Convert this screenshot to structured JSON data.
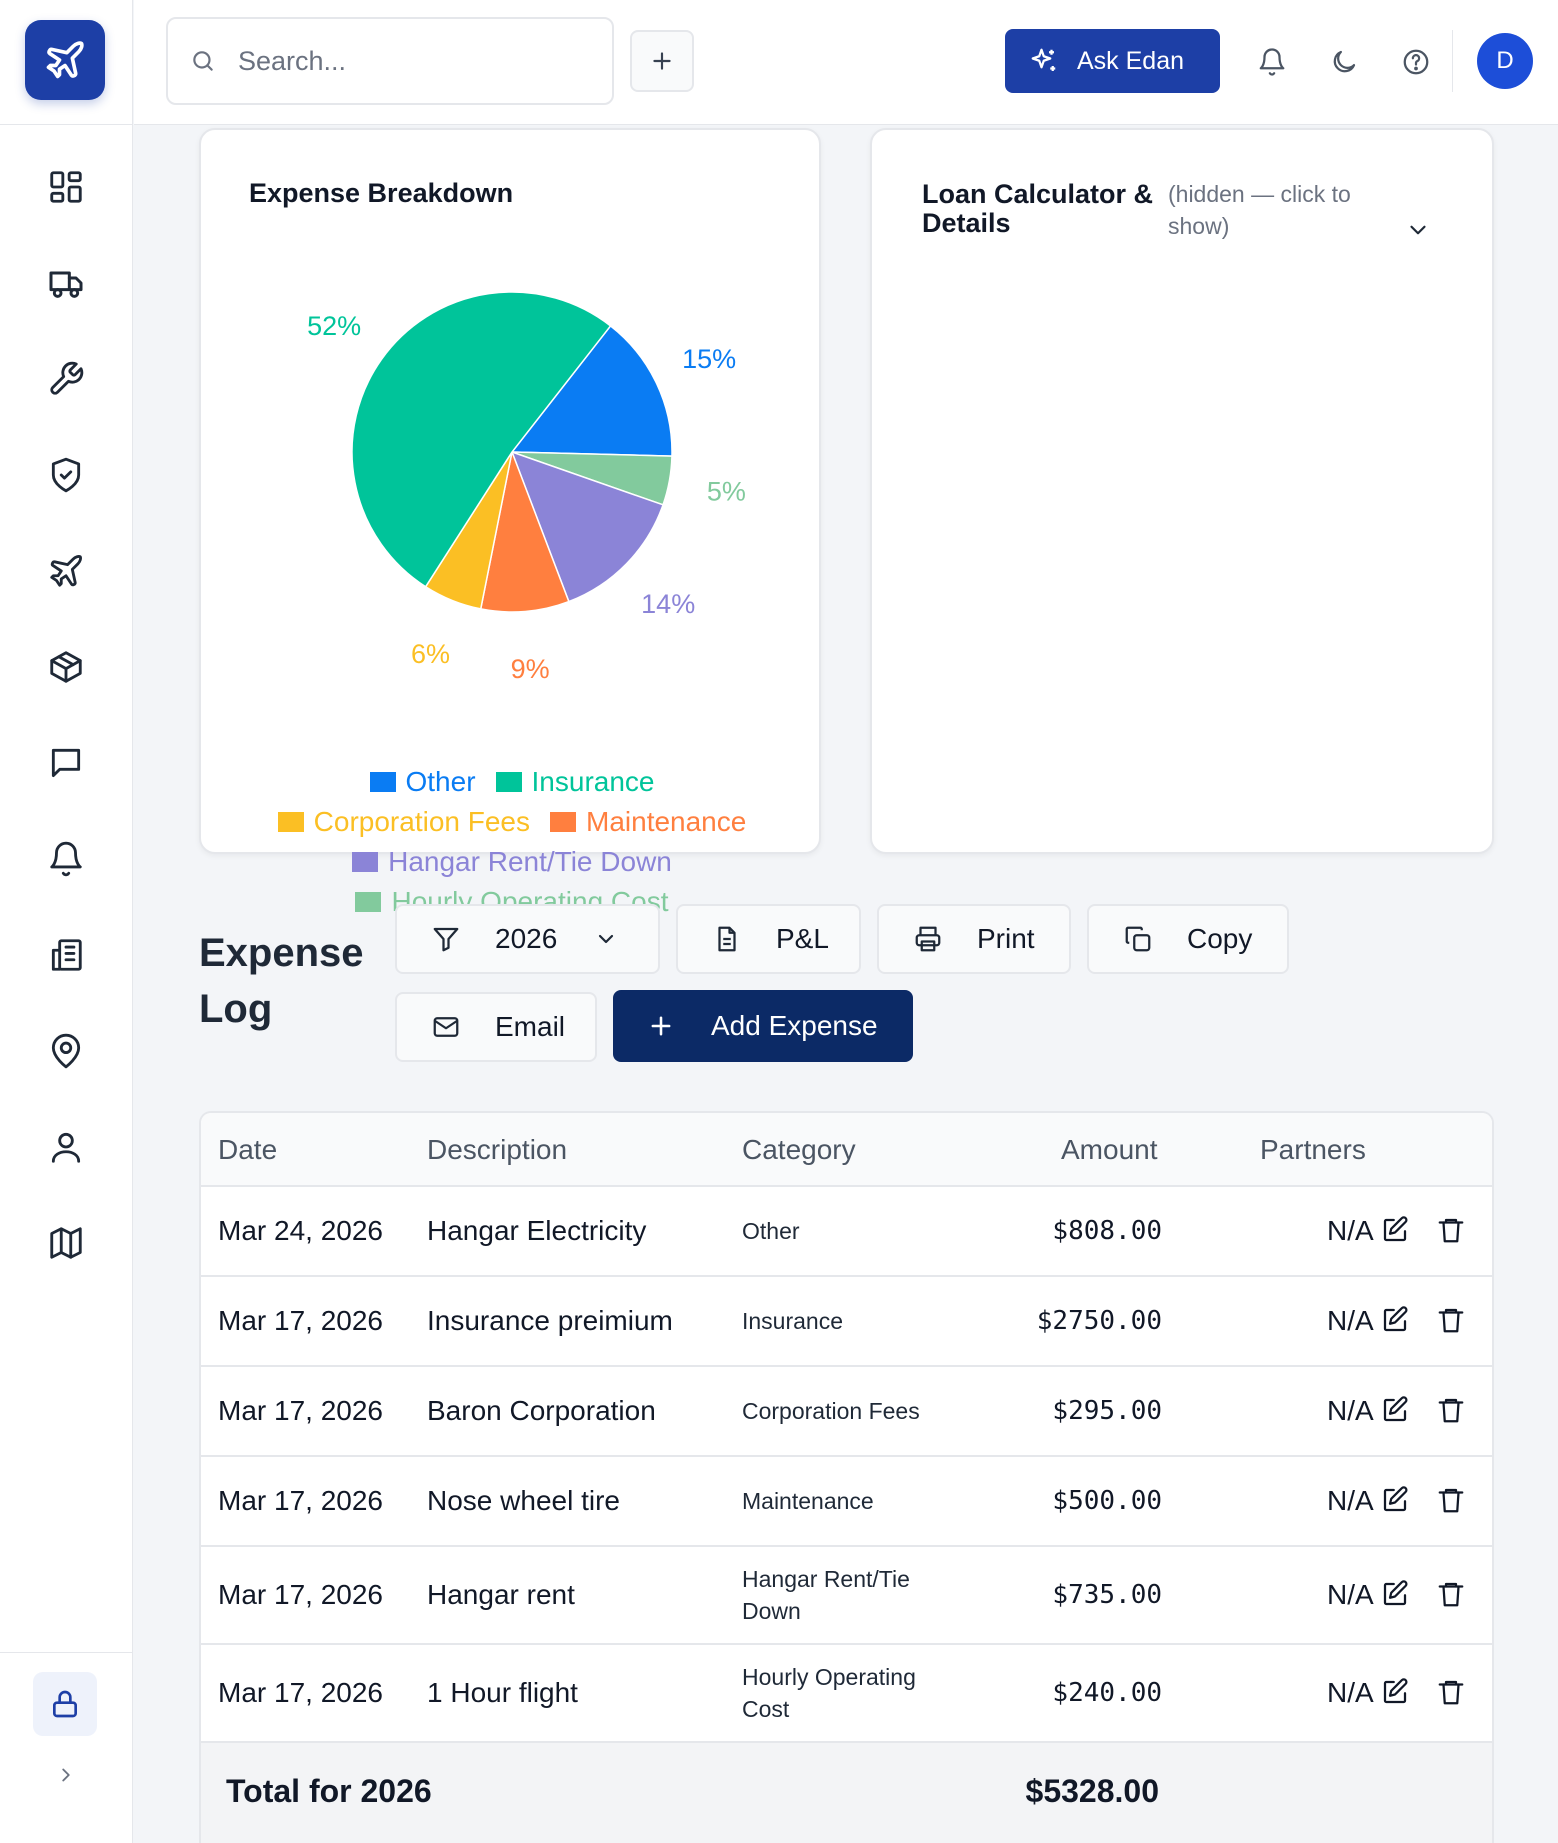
{
  "search": {
    "placeholder": "Search..."
  },
  "header": {
    "ask_label": "Ask Edan",
    "avatar_initial": "D"
  },
  "colors": {
    "brand": "#1d3fa6",
    "primary_dark": "#0c2a66",
    "other": "#0a7cf3",
    "insurance": "#00c49a",
    "corporation_fees": "#fbbf24",
    "maintenance": "#ff7f3f",
    "hangar": "#8b84d7",
    "hourly": "#82ca9d"
  },
  "sidebar": {
    "items": [
      {
        "icon": "dashboard-icon"
      },
      {
        "icon": "truck-icon"
      },
      {
        "icon": "wrench-icon"
      },
      {
        "icon": "shield-check-icon"
      },
      {
        "icon": "plane-icon"
      },
      {
        "icon": "box-icon"
      },
      {
        "icon": "message-icon"
      },
      {
        "icon": "bell-icon"
      },
      {
        "icon": "building-icon"
      },
      {
        "icon": "map-pin-icon"
      },
      {
        "icon": "user-icon"
      },
      {
        "icon": "map-icon"
      }
    ],
    "bottom": [
      {
        "icon": "lock-icon"
      },
      {
        "icon": "chevron-right-icon"
      }
    ]
  },
  "expense_card": {
    "title": "Expense Breakdown"
  },
  "loan_card": {
    "title": "Loan Calculator & Details",
    "hint": "(hidden — click to show)"
  },
  "chart_data": {
    "type": "pie",
    "title": "Expense Breakdown",
    "legend_position": "bottom",
    "slices": [
      {
        "name": "Other",
        "value": 15,
        "label": "15%"
      },
      {
        "name": "Hourly Operating Cost",
        "value": 5,
        "label": "5%"
      },
      {
        "name": "Hangar Rent/Tie Down",
        "value": 14,
        "label": "14%"
      },
      {
        "name": "Maintenance",
        "value": 9,
        "label": "9%"
      },
      {
        "name": "Corporation Fees",
        "value": 6,
        "label": "6%"
      },
      {
        "name": "Insurance",
        "value": 52,
        "label": "52%"
      }
    ]
  },
  "legend": {
    "rows": [
      [
        "Other",
        "Insurance"
      ],
      [
        "Corporation Fees",
        "Maintenance"
      ],
      [
        "Hangar Rent/Tie Down"
      ],
      [
        "Hourly Operating Cost"
      ]
    ]
  },
  "expense_log": {
    "title": "Expense Log",
    "year": "2026",
    "pl_label": "P&L",
    "print_label": "Print",
    "copy_label": "Copy",
    "email_label": "Email",
    "add_label": "Add Expense"
  },
  "table": {
    "headers": {
      "date": "Date",
      "description": "Description",
      "category": "Category",
      "amount": "Amount",
      "partners": "Partners"
    },
    "rows": [
      {
        "date": "Mar 24, 2026",
        "description": "Hangar Electricity",
        "category": "Other",
        "amount": "$808.00",
        "partners": "N/A"
      },
      {
        "date": "Mar 17, 2026",
        "description": "Insurance preimium",
        "category": "Insurance",
        "amount": "$2750.00",
        "partners": "N/A"
      },
      {
        "date": "Mar 17, 2026",
        "description": "Baron Corporation",
        "category": "Corporation Fees",
        "amount": "$295.00",
        "partners": "N/A"
      },
      {
        "date": "Mar 17, 2026",
        "description": "Nose wheel tire",
        "category": "Maintenance",
        "amount": "$500.00",
        "partners": "N/A"
      },
      {
        "date": "Mar 17, 2026",
        "description": "Hangar rent",
        "category": "Hangar Rent/Tie Down",
        "amount": "$735.00",
        "partners": "N/A"
      },
      {
        "date": "Mar 17, 2026",
        "description": "1 Hour flight",
        "category": "Hourly Operating Cost",
        "amount": "$240.00",
        "partners": "N/A"
      }
    ],
    "footer": {
      "label": "Total for 2026",
      "total": "$5328.00"
    }
  }
}
